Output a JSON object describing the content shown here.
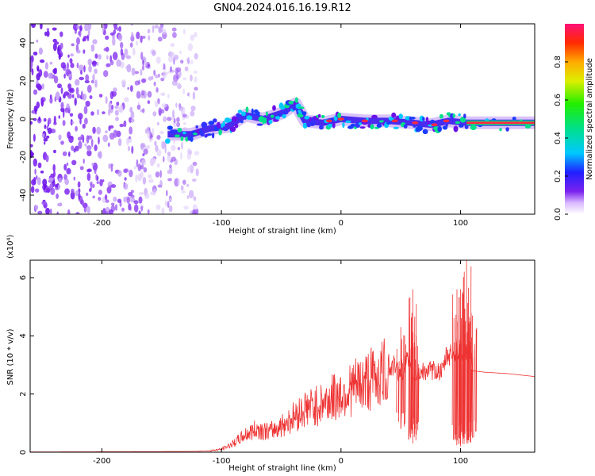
{
  "title": "GN04.2024.016.16.19.R12",
  "chart_data": [
    {
      "type": "heatmap",
      "xlabel": "Height of straight line (km)",
      "ylabel": "Frequency (Hz)",
      "xlim": [
        -260,
        162
      ],
      "ylim": [
        -50,
        50
      ],
      "x_ticks": [
        -200,
        -100,
        0,
        100
      ],
      "y_ticks": [
        -40,
        -20,
        0,
        20,
        40
      ],
      "colorbar": {
        "label": "Normalized spectral amplitude",
        "range": [
          0,
          1
        ],
        "ticks": [
          0.0,
          0.2,
          0.4,
          0.6,
          0.8
        ]
      },
      "noise_region": {
        "x_range": [
          -260,
          -120
        ],
        "y_range": [
          -50,
          50
        ]
      },
      "trace_points": [
        {
          "x": -145,
          "y": -8
        },
        {
          "x": -125,
          "y": -8
        },
        {
          "x": -110,
          "y": -5
        },
        {
          "x": -95,
          "y": -4
        },
        {
          "x": -80,
          "y": 2
        },
        {
          "x": -65,
          "y": 0
        },
        {
          "x": -50,
          "y": 3
        },
        {
          "x": -38,
          "y": 8
        },
        {
          "x": -30,
          "y": -1
        },
        {
          "x": -15,
          "y": -2
        },
        {
          "x": 0,
          "y": 0
        },
        {
          "x": 20,
          "y": -1
        },
        {
          "x": 40,
          "y": -1
        },
        {
          "x": 60,
          "y": -2
        },
        {
          "x": 75,
          "y": -3
        },
        {
          "x": 90,
          "y": -1
        },
        {
          "x": 105,
          "y": -2
        },
        {
          "x": 162,
          "y": -2
        }
      ]
    },
    {
      "type": "line",
      "xlabel": "Height of straight line (km)",
      "ylabel": "SNR (10 * v/v)",
      "y_exponent": "(x10⁴)",
      "xlim": [
        -260,
        162
      ],
      "ylim": [
        0,
        6.6
      ],
      "x_ticks": [
        -200,
        -100,
        0,
        100
      ],
      "y_ticks": [
        0,
        2,
        4,
        6
      ],
      "series": [
        {
          "color": "#ee3333",
          "x": [
            -260,
            -150,
            -120,
            -110,
            -100,
            -90,
            -80,
            -70,
            -60,
            -50,
            -40,
            -30,
            -20,
            -10,
            0,
            10,
            20,
            30,
            40,
            45,
            50,
            55,
            60,
            65,
            70,
            80,
            85,
            88,
            92,
            96,
            100,
            104,
            108,
            110,
            120,
            140,
            162
          ],
          "y": [
            0.01,
            0.02,
            0.03,
            0.05,
            0.1,
            0.3,
            0.6,
            0.8,
            0.7,
            0.9,
            1.2,
            1.5,
            1.6,
            1.8,
            2.0,
            2.2,
            2.4,
            2.6,
            2.8,
            3.0,
            2.6,
            3.2,
            2.5,
            2.7,
            2.8,
            2.8,
            2.75,
            3.3,
            3.4,
            3.5,
            3.6,
            3.4,
            3.5,
            2.8,
            2.75,
            2.7,
            2.6
          ],
          "spikes": [
            {
              "x": 50,
              "low": 0.8,
              "high": 4.3
            },
            {
              "x": 60,
              "low": 0.3,
              "high": 5.6
            },
            {
              "x": 63,
              "low": 0.6,
              "high": 4.0
            },
            {
              "x": 97,
              "low": 0.4,
              "high": 5.6
            },
            {
              "x": 100,
              "low": 0.2,
              "high": 5.6
            },
            {
              "x": 105,
              "low": 0.3,
              "high": 6.6
            },
            {
              "x": 110,
              "low": 0.5,
              "high": 4.7
            }
          ]
        }
      ]
    }
  ]
}
